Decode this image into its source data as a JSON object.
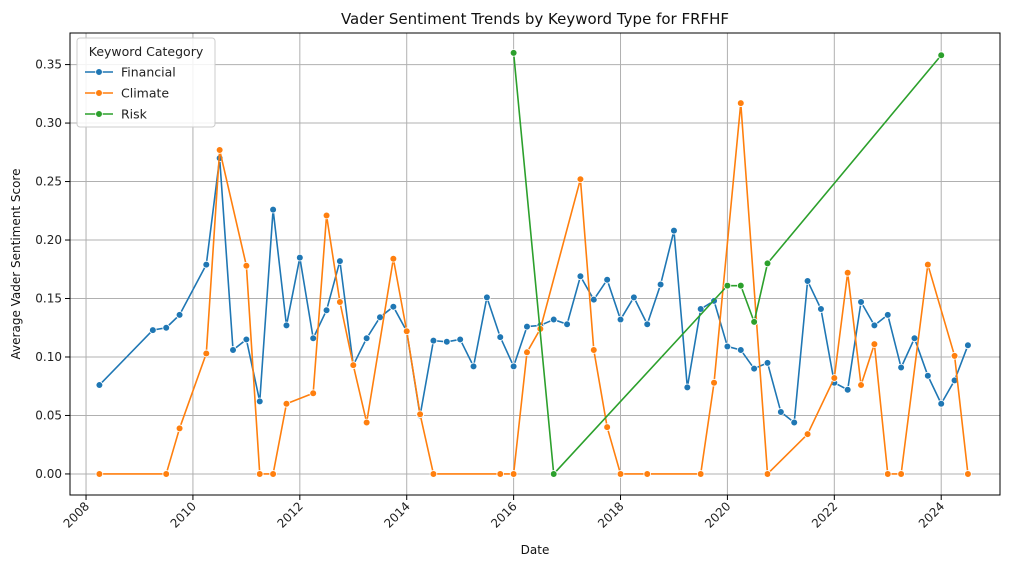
{
  "chart_data": {
    "type": "line",
    "title": "Vader Sentiment Trends by Keyword Type for FRFHF",
    "xlabel": "Date",
    "ylabel": "Average Vader Sentiment Score",
    "xlim": [
      2007.7,
      2025.1
    ],
    "ylim": [
      -0.018,
      0.377
    ],
    "x_ticks": [
      2008,
      2010,
      2012,
      2014,
      2016,
      2018,
      2020,
      2022,
      2024
    ],
    "y_ticks": [
      0.0,
      0.05,
      0.1,
      0.15,
      0.2,
      0.25,
      0.3,
      0.35
    ],
    "y_tick_labels": [
      "0.00",
      "0.05",
      "0.10",
      "0.15",
      "0.20",
      "0.25",
      "0.30",
      "0.35"
    ],
    "grid": true,
    "legend": {
      "title": "Keyword Category",
      "position": "top-left"
    },
    "series": [
      {
        "name": "Financial",
        "color": "#1f77b4",
        "points": [
          [
            2008.25,
            0.076
          ],
          [
            2009.25,
            0.123
          ],
          [
            2009.5,
            0.125
          ],
          [
            2009.75,
            0.136
          ],
          [
            2010.25,
            0.179
          ],
          [
            2010.5,
            0.27
          ],
          [
            2010.75,
            0.106
          ],
          [
            2011.0,
            0.115
          ],
          [
            2011.25,
            0.062
          ],
          [
            2011.5,
            0.226
          ],
          [
            2011.75,
            0.127
          ],
          [
            2012.0,
            0.185
          ],
          [
            2012.25,
            0.116
          ],
          [
            2012.5,
            0.14
          ],
          [
            2012.75,
            0.182
          ],
          [
            2013.0,
            0.093
          ],
          [
            2013.25,
            0.116
          ],
          [
            2013.5,
            0.134
          ],
          [
            2013.75,
            0.143
          ],
          [
            2014.0,
            0.122
          ],
          [
            2014.25,
            0.05
          ],
          [
            2014.5,
            0.114
          ],
          [
            2014.75,
            0.113
          ],
          [
            2015.0,
            0.115
          ],
          [
            2015.25,
            0.092
          ],
          [
            2015.5,
            0.151
          ],
          [
            2015.75,
            0.117
          ],
          [
            2016.0,
            0.092
          ],
          [
            2016.25,
            0.126
          ],
          [
            2016.5,
            0.127
          ],
          [
            2016.75,
            0.132
          ],
          [
            2017.0,
            0.128
          ],
          [
            2017.25,
            0.169
          ],
          [
            2017.5,
            0.149
          ],
          [
            2017.75,
            0.166
          ],
          [
            2018.0,
            0.132
          ],
          [
            2018.25,
            0.151
          ],
          [
            2018.5,
            0.128
          ],
          [
            2018.75,
            0.162
          ],
          [
            2019.0,
            0.208
          ],
          [
            2019.25,
            0.074
          ],
          [
            2019.5,
            0.141
          ],
          [
            2019.75,
            0.148
          ],
          [
            2020.0,
            0.109
          ],
          [
            2020.25,
            0.106
          ],
          [
            2020.5,
            0.09
          ],
          [
            2020.75,
            0.095
          ],
          [
            2021.0,
            0.053
          ],
          [
            2021.25,
            0.044
          ],
          [
            2021.5,
            0.165
          ],
          [
            2021.75,
            0.141
          ],
          [
            2022.0,
            0.078
          ],
          [
            2022.25,
            0.072
          ],
          [
            2022.5,
            0.147
          ],
          [
            2022.75,
            0.127
          ],
          [
            2023.0,
            0.136
          ],
          [
            2023.25,
            0.091
          ],
          [
            2023.5,
            0.116
          ],
          [
            2023.75,
            0.084
          ],
          [
            2024.0,
            0.06
          ],
          [
            2024.25,
            0.08
          ],
          [
            2024.5,
            0.11
          ]
        ]
      },
      {
        "name": "Climate",
        "color": "#ff7f0e",
        "points": [
          [
            2008.25,
            0.0
          ],
          [
            2009.5,
            0.0
          ],
          [
            2009.75,
            0.039
          ],
          [
            2010.25,
            0.103
          ],
          [
            2010.5,
            0.277
          ],
          [
            2011.0,
            0.178
          ],
          [
            2011.25,
            0.0
          ],
          [
            2011.5,
            0.0
          ],
          [
            2011.75,
            0.06
          ],
          [
            2012.25,
            0.069
          ],
          [
            2012.5,
            0.221
          ],
          [
            2012.75,
            0.147
          ],
          [
            2013.0,
            0.093
          ],
          [
            2013.25,
            0.044
          ],
          [
            2013.75,
            0.184
          ],
          [
            2014.0,
            0.122
          ],
          [
            2014.25,
            0.051
          ],
          [
            2014.5,
            0.0
          ],
          [
            2015.75,
            0.0
          ],
          [
            2016.0,
            0.0
          ],
          [
            2016.25,
            0.104
          ],
          [
            2016.5,
            0.124
          ],
          [
            2017.25,
            0.252
          ],
          [
            2017.5,
            0.106
          ],
          [
            2017.75,
            0.04
          ],
          [
            2018.0,
            0.0
          ],
          [
            2018.5,
            0.0
          ],
          [
            2019.5,
            0.0
          ],
          [
            2019.75,
            0.078
          ],
          [
            2020.25,
            0.317
          ],
          [
            2020.75,
            0.0
          ],
          [
            2021.5,
            0.034
          ],
          [
            2022.0,
            0.082
          ],
          [
            2022.25,
            0.172
          ],
          [
            2022.5,
            0.076
          ],
          [
            2022.75,
            0.111
          ],
          [
            2023.0,
            0.0
          ],
          [
            2023.25,
            0.0
          ],
          [
            2023.75,
            0.179
          ],
          [
            2024.25,
            0.101
          ],
          [
            2024.5,
            0.0
          ]
        ]
      },
      {
        "name": "Risk",
        "color": "#2ca02c",
        "points": [
          [
            2016.0,
            0.36
          ],
          [
            2016.75,
            0.0
          ],
          [
            2020.0,
            0.161
          ],
          [
            2020.25,
            0.161
          ],
          [
            2020.5,
            0.13
          ],
          [
            2020.75,
            0.18
          ],
          [
            2024.0,
            0.358
          ]
        ]
      }
    ]
  }
}
